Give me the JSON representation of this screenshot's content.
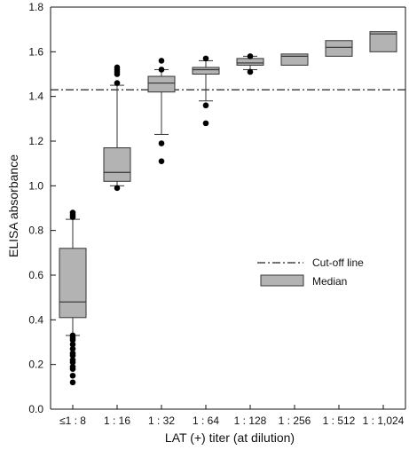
{
  "chart_data": {
    "type": "box",
    "title": "",
    "xlabel": "LAT (+) titer (at dilution)",
    "ylabel": "ELISA absorbance",
    "ylim": [
      0.0,
      1.8
    ],
    "yticks": [
      0.0,
      0.2,
      0.4,
      0.6,
      0.8,
      1.0,
      1.2,
      1.4,
      1.6,
      1.8
    ],
    "ytick_labels": [
      "0.0",
      "0.2",
      "0.4",
      "0.6",
      "0.8",
      "1.0",
      "1.2",
      "1.4",
      "1.6",
      "1.8"
    ],
    "categories": [
      "≤1 : 8",
      "1 : 16",
      "1 : 32",
      "1 : 64",
      "1 : 128",
      "1 : 256",
      "1 : 512",
      "1 : 1,024"
    ],
    "grid": false,
    "cutoff": 1.43,
    "box_color": "#b3b3b3",
    "boxes": [
      {
        "category": "≤1 : 8",
        "whisker_low": 0.33,
        "q1": 0.41,
        "median": 0.48,
        "q3": 0.72,
        "whisker_high": 0.85,
        "outliers": [
          0.12,
          0.15,
          0.18,
          0.19,
          0.21,
          0.22,
          0.24,
          0.25,
          0.27,
          0.29,
          0.31,
          0.32,
          0.33,
          0.86,
          0.87,
          0.88
        ]
      },
      {
        "category": "1 : 16",
        "whisker_low": 1.0,
        "q1": 1.02,
        "median": 1.06,
        "q3": 1.17,
        "whisker_high": 1.45,
        "outliers": [
          0.99,
          1.46,
          1.5,
          1.51,
          1.52,
          1.53
        ]
      },
      {
        "category": "1 : 32",
        "whisker_low": 1.23,
        "q1": 1.42,
        "median": 1.46,
        "q3": 1.49,
        "whisker_high": 1.52,
        "outliers": [
          1.11,
          1.19,
          1.52,
          1.56
        ]
      },
      {
        "category": "1 : 64",
        "whisker_low": 1.38,
        "q1": 1.5,
        "median": 1.52,
        "q3": 1.53,
        "whisker_high": 1.56,
        "outliers": [
          1.28,
          1.36,
          1.57
        ]
      },
      {
        "category": "1 : 128",
        "whisker_low": 1.52,
        "q1": 1.54,
        "median": 1.55,
        "q3": 1.57,
        "whisker_high": 1.58,
        "outliers": [
          1.51,
          1.58
        ]
      },
      {
        "category": "1 : 256",
        "whisker_low": 1.54,
        "q1": 1.54,
        "median": 1.58,
        "q3": 1.59,
        "whisker_high": 1.59,
        "outliers": []
      },
      {
        "category": "1 : 512",
        "whisker_low": 1.58,
        "q1": 1.58,
        "median": 1.62,
        "q3": 1.65,
        "whisker_high": 1.65,
        "outliers": []
      },
      {
        "category": "1 : 1,024",
        "whisker_low": 1.6,
        "q1": 1.6,
        "median": 1.68,
        "q3": 1.69,
        "whisker_high": 1.69,
        "outliers": []
      }
    ],
    "legend": {
      "position": "center-right",
      "items": [
        {
          "label": "Cut-off line",
          "symbol": "dash-dot-line"
        },
        {
          "label": "Median",
          "symbol": "box"
        }
      ]
    }
  }
}
